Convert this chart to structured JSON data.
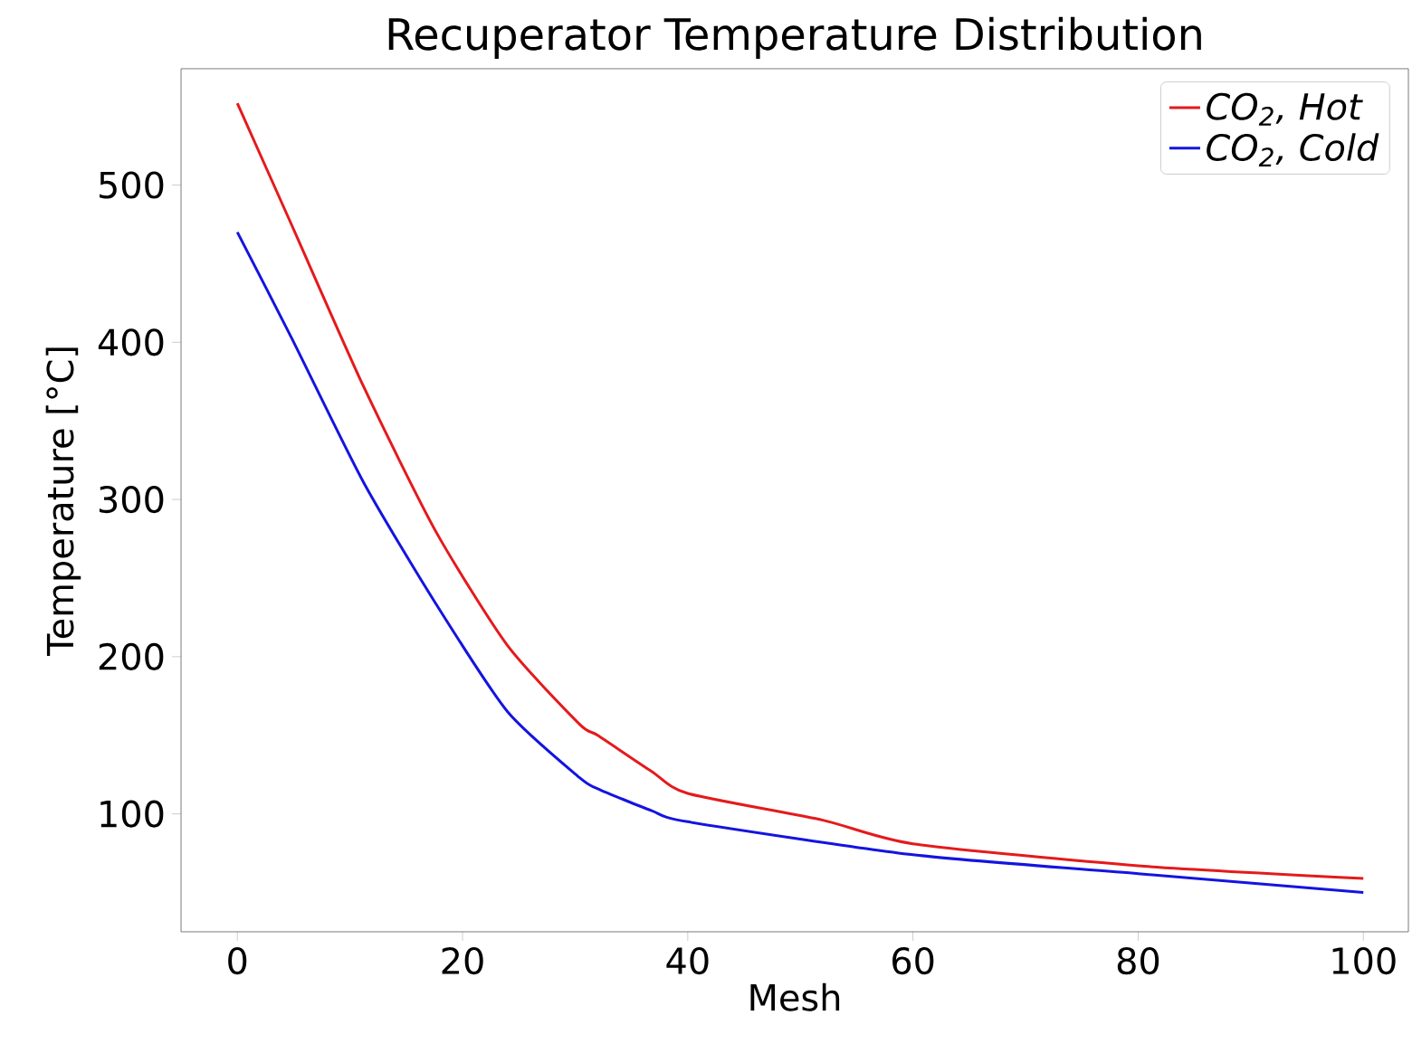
{
  "chart_data": {
    "type": "line",
    "title": "Recuperator Temperature Distribution",
    "xlabel": "Mesh",
    "ylabel": "Temperature [°C]",
    "xlim": [
      -5,
      104
    ],
    "ylim": [
      25,
      574
    ],
    "xticks": [
      0,
      20,
      40,
      60,
      80,
      100
    ],
    "yticks": [
      100,
      200,
      300,
      400,
      500
    ],
    "grid": false,
    "legend": "top right",
    "line_style": "solid",
    "marker": "none",
    "series": [
      {
        "name": "CO$_{2}$, Hot",
        "color": "#e41a1c",
        "x": [
          0,
          4.8,
          11.2,
          17.6,
          24,
          30.4,
          32,
          36.8,
          40,
          52,
          60,
          80,
          100
        ],
        "values": [
          552,
          475,
          372,
          280,
          207,
          157,
          150,
          127,
          113,
          96,
          81,
          67,
          59
        ]
      },
      {
        "name": "CO$_{2}$, Cold",
        "color": "#1414e0",
        "x": [
          0,
          4.8,
          11.2,
          17.6,
          24,
          30.4,
          32,
          36.8,
          40,
          60,
          80,
          100
        ],
        "values": [
          470,
          403,
          311,
          234,
          165,
          123,
          116,
          102,
          95,
          74,
          62,
          50
        ]
      }
    ]
  }
}
